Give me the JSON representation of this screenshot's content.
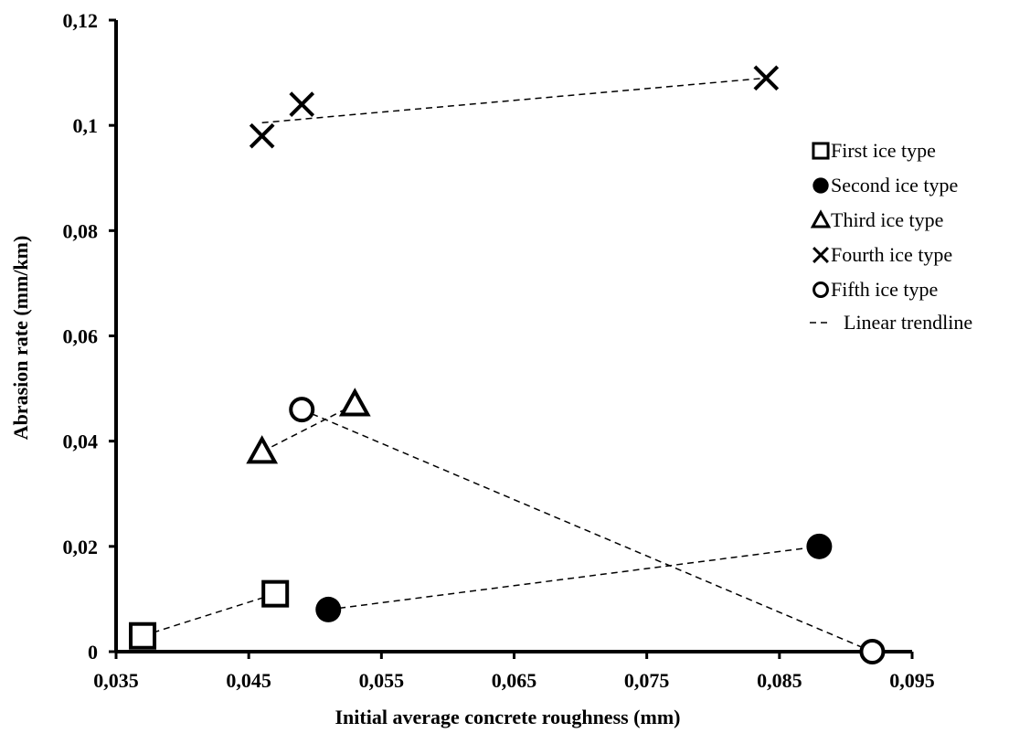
{
  "chart_data": {
    "type": "scatter",
    "xlabel": "Initial average concrete roughness (mm)",
    "ylabel": "Abrasion rate (mm/km)",
    "xlim": [
      0.035,
      0.095
    ],
    "ylim": [
      0,
      0.12
    ],
    "x_ticks": [
      0.035,
      0.045,
      0.055,
      0.065,
      0.075,
      0.085,
      0.095
    ],
    "x_tick_labels": [
      "0,035",
      "0,045",
      "0,055",
      "0,065",
      "0,075",
      "0,085",
      "0,095"
    ],
    "y_ticks": [
      0,
      0.02,
      0.04,
      0.06,
      0.08,
      0.1,
      0.12
    ],
    "y_tick_labels": [
      "0",
      "0,02",
      "0,04",
      "0,06",
      "0,08",
      "0,1",
      "0,12"
    ],
    "grid": false,
    "legend_position": "right",
    "series": [
      {
        "name": "First ice type",
        "marker": "square-open",
        "points": [
          [
            0.037,
            0.003
          ],
          [
            0.047,
            0.011
          ]
        ],
        "trend": [
          [
            0.037,
            0.003
          ],
          [
            0.047,
            0.011
          ]
        ]
      },
      {
        "name": "Second ice type",
        "marker": "circle-filled",
        "points": [
          [
            0.051,
            0.008
          ],
          [
            0.088,
            0.02
          ]
        ],
        "trend": [
          [
            0.051,
            0.008
          ],
          [
            0.088,
            0.02
          ]
        ]
      },
      {
        "name": "Third ice type",
        "marker": "triangle-open",
        "points": [
          [
            0.046,
            0.038
          ],
          [
            0.053,
            0.047
          ]
        ],
        "trend": [
          [
            0.046,
            0.038
          ],
          [
            0.053,
            0.047
          ]
        ]
      },
      {
        "name": "Fourth  ice type",
        "marker": "cross",
        "points": [
          [
            0.046,
            0.098
          ],
          [
            0.049,
            0.104
          ],
          [
            0.084,
            0.109
          ]
        ],
        "trend": [
          [
            0.046,
            0.1005
          ],
          [
            0.084,
            0.109
          ]
        ]
      },
      {
        "name": "Fifth  ice type",
        "marker": "circle-open",
        "points": [
          [
            0.049,
            0.046
          ],
          [
            0.092,
            0.0
          ]
        ],
        "trend": [
          [
            0.049,
            0.046
          ],
          [
            0.092,
            0.0
          ]
        ]
      }
    ],
    "trendline_legend": "Linear trendline",
    "colors": {
      "marker": "#000000",
      "trendline": "#000000",
      "axis": "#000000"
    }
  }
}
